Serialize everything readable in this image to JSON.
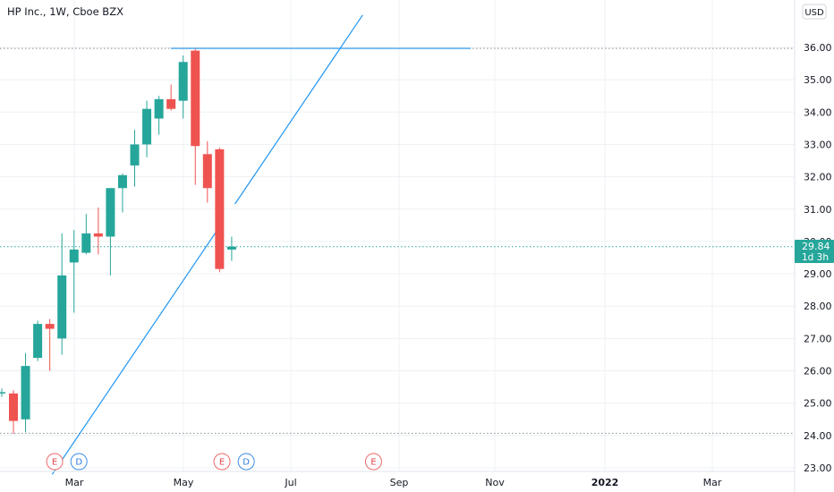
{
  "chart_title": "HP Inc., 1W, Cboe BZX",
  "currency": "USD",
  "price_label": {
    "value": "29.84",
    "countdown": "1d 3h"
  },
  "chart_data": {
    "type": "candlestick",
    "y_ticks": [
      "23.00",
      "24.00",
      "25.00",
      "26.00",
      "27.00",
      "28.00",
      "29.00",
      "30.00",
      "31.00",
      "32.00",
      "33.00",
      "34.00",
      "35.00",
      "36.00"
    ],
    "ylim": [
      22.8,
      37.3
    ],
    "x_ticks": [
      {
        "label": "Mar",
        "bold": false
      },
      {
        "label": "May",
        "bold": false
      },
      {
        "label": "Jul",
        "bold": false
      },
      {
        "label": "Sep",
        "bold": false
      },
      {
        "label": "Nov",
        "bold": false
      },
      {
        "label": "2022",
        "bold": true
      },
      {
        "label": "Mar",
        "bold": false
      }
    ],
    "candles": [
      {
        "o": 25.3,
        "h": 25.4,
        "l": 24.05,
        "c": 24.45
      },
      {
        "o": 24.5,
        "h": 26.55,
        "l": 24.1,
        "c": 26.15
      },
      {
        "o": 26.4,
        "h": 27.55,
        "l": 26.3,
        "c": 27.45
      },
      {
        "o": 27.45,
        "h": 27.6,
        "l": 26.0,
        "c": 27.3
      },
      {
        "o": 27.0,
        "h": 30.25,
        "l": 26.5,
        "c": 28.95
      },
      {
        "o": 29.35,
        "h": 30.35,
        "l": 27.8,
        "c": 29.75
      },
      {
        "o": 29.65,
        "h": 30.85,
        "l": 29.6,
        "c": 30.25
      },
      {
        "o": 30.25,
        "h": 31.05,
        "l": 29.6,
        "c": 30.15
      },
      {
        "o": 30.15,
        "h": 31.65,
        "l": 28.95,
        "c": 31.65
      },
      {
        "o": 31.65,
        "h": 32.1,
        "l": 30.9,
        "c": 32.05
      },
      {
        "o": 32.35,
        "h": 33.45,
        "l": 31.7,
        "c": 33.0
      },
      {
        "o": 33.0,
        "h": 34.35,
        "l": 32.6,
        "c": 34.1
      },
      {
        "o": 33.8,
        "h": 34.5,
        "l": 33.3,
        "c": 34.4
      },
      {
        "o": 34.4,
        "h": 34.85,
        "l": 34.05,
        "c": 34.1
      },
      {
        "o": 34.35,
        "h": 35.75,
        "l": 33.8,
        "c": 35.55
      },
      {
        "o": 35.9,
        "h": 35.95,
        "l": 31.75,
        "c": 32.95
      },
      {
        "o": 32.7,
        "h": 33.1,
        "l": 31.2,
        "c": 31.65
      },
      {
        "o": 32.85,
        "h": 32.9,
        "l": 29.05,
        "c": 29.15
      },
      {
        "o": 29.75,
        "h": 30.15,
        "l": 29.4,
        "c": 29.84
      }
    ],
    "horizontal_line": 35.97,
    "dotted_levels": [
      35.97,
      29.84,
      24.07
    ],
    "trendline_points": [
      {
        "week": 3.2,
        "price": 22.8
      },
      {
        "week": 28.8,
        "price": 37.0
      }
    ],
    "events": [
      {
        "type": "E",
        "week": 3.4
      },
      {
        "type": "D",
        "week": 5.4
      },
      {
        "type": "E",
        "week": 17.2
      },
      {
        "type": "D",
        "week": 19.2
      },
      {
        "type": "E",
        "week": 29.7
      }
    ],
    "colors": {
      "up": "#26a69a",
      "down": "#ef5350",
      "line": "#2196f3",
      "price_tag": "#26a69a"
    }
  }
}
